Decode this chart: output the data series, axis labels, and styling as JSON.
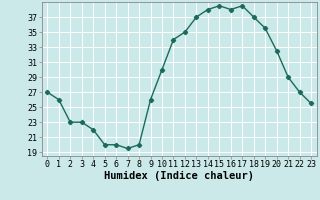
{
  "xlabel": "Humidex (Indice chaleur)",
  "x": [
    0,
    1,
    2,
    3,
    4,
    5,
    6,
    7,
    8,
    9,
    10,
    11,
    12,
    13,
    14,
    15,
    16,
    17,
    18,
    19,
    20,
    21,
    22,
    23
  ],
  "y": [
    27,
    26,
    23,
    23,
    22,
    20,
    20,
    19.5,
    20,
    26,
    30,
    34,
    35,
    37,
    38,
    38.5,
    38,
    38.5,
    37,
    35.5,
    32.5,
    29,
    27,
    25.5
  ],
  "ylim": [
    18.5,
    39.0
  ],
  "yticks": [
    19,
    21,
    23,
    25,
    27,
    29,
    31,
    33,
    35,
    37
  ],
  "line_color": "#1a6b5a",
  "marker": "D",
  "marker_size": 2.2,
  "bg_color": "#cce9e9",
  "grid_color": "#ffffff",
  "tick_label_fontsize": 6.0,
  "xlabel_fontsize": 7.5,
  "linewidth": 1.0
}
